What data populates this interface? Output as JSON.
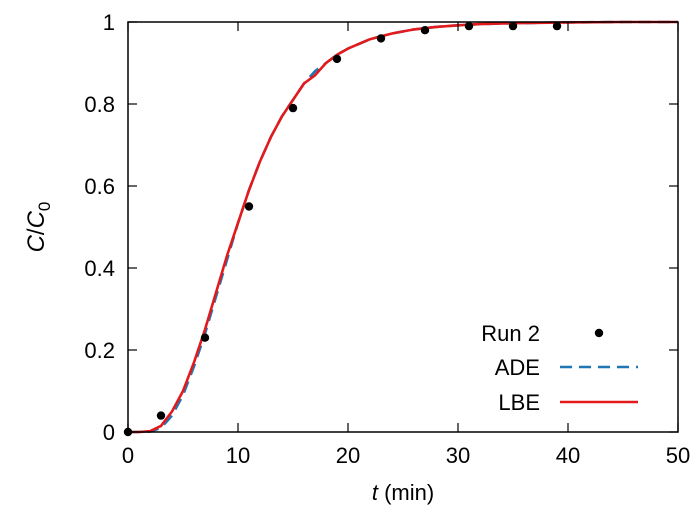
{
  "chart_data": {
    "type": "line",
    "xlabel": {
      "var": "t",
      "unit": " (min)"
    },
    "ylabel": {
      "var": "C",
      "sep": "/",
      "base": "C",
      "sub": "0"
    },
    "xlim": [
      0,
      50
    ],
    "ylim": [
      0,
      1
    ],
    "xticks": [
      0,
      10,
      20,
      30,
      40,
      50
    ],
    "yticks": [
      0,
      0.2,
      0.4,
      0.6,
      0.8,
      1
    ],
    "xtick_labels": [
      "0",
      "10",
      "20",
      "30",
      "40",
      "50"
    ],
    "ytick_labels": [
      "0",
      "0.2",
      "0.4",
      "0.6",
      "0.8",
      "1"
    ],
    "grid": false,
    "legend_position": "bottom-right",
    "series": [
      {
        "name": "Run 2",
        "style": "points",
        "color": "#000000",
        "x": [
          0,
          3,
          7,
          11,
          15,
          19,
          23,
          27,
          31,
          35,
          39
        ],
        "y": [
          0.0,
          0.04,
          0.23,
          0.55,
          0.79,
          0.91,
          0.96,
          0.98,
          0.99,
          0.99,
          0.99
        ]
      },
      {
        "name": "ADE",
        "style": "dashed",
        "color": "#1f77b4",
        "x": [
          0,
          1,
          2,
          3,
          4,
          5,
          6,
          7,
          8,
          9,
          10,
          11,
          12,
          13,
          14,
          15,
          16,
          17,
          18,
          19,
          20,
          22,
          24,
          26,
          28,
          30,
          32,
          35,
          40,
          45,
          50
        ],
        "y": [
          0.0,
          0.0,
          0.001,
          0.01,
          0.04,
          0.09,
          0.16,
          0.24,
          0.33,
          0.42,
          0.51,
          0.59,
          0.66,
          0.72,
          0.77,
          0.81,
          0.85,
          0.88,
          0.9,
          0.92,
          0.935,
          0.958,
          0.972,
          0.982,
          0.988,
          0.992,
          0.995,
          0.997,
          0.999,
          1.0,
          1.0
        ]
      },
      {
        "name": "LBE",
        "style": "solid",
        "color": "#e31a1c",
        "x": [
          0,
          1,
          2,
          3,
          4,
          5,
          6,
          7,
          8,
          9,
          10,
          11,
          12,
          13,
          14,
          15,
          16,
          17,
          18,
          19,
          20,
          22,
          24,
          26,
          28,
          30,
          32,
          35,
          40,
          45,
          50
        ],
        "y": [
          0.0,
          0.0,
          0.002,
          0.015,
          0.05,
          0.1,
          0.17,
          0.25,
          0.34,
          0.43,
          0.51,
          0.59,
          0.66,
          0.72,
          0.77,
          0.81,
          0.85,
          0.87,
          0.9,
          0.92,
          0.935,
          0.958,
          0.972,
          0.982,
          0.988,
          0.992,
          0.995,
          0.997,
          0.999,
          1.0,
          1.0
        ]
      }
    ]
  }
}
